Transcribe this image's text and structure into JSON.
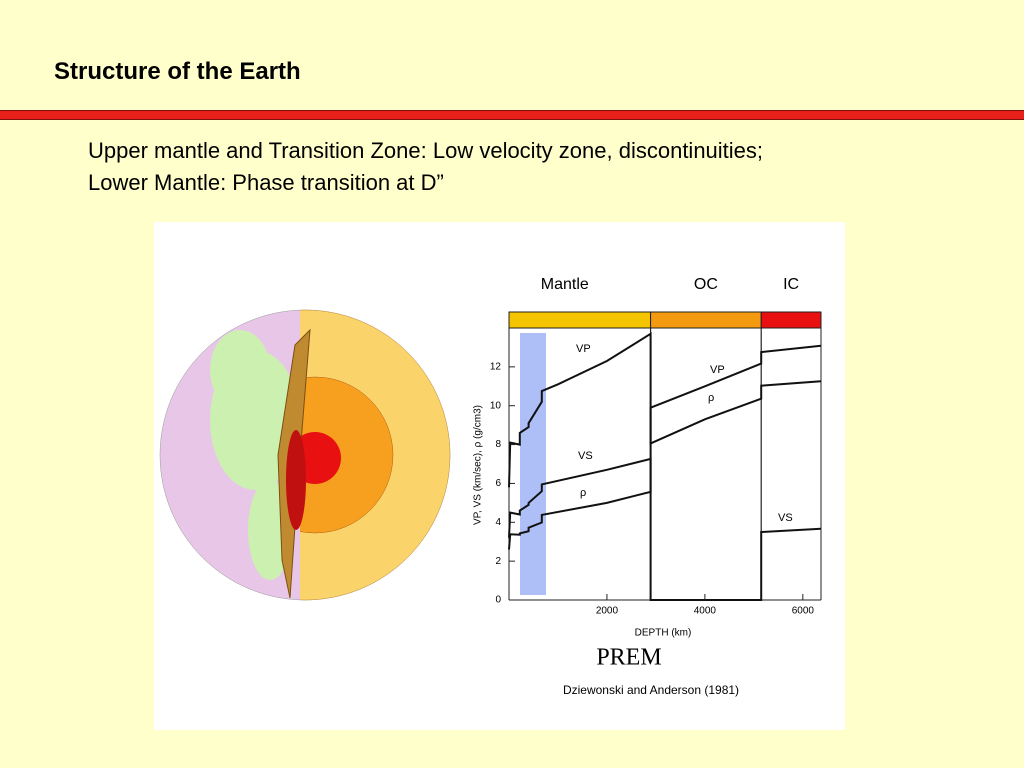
{
  "header": {
    "title": "Structure of the Earth"
  },
  "body": {
    "lines": [
      "Upper mantle and Transition Zone: Low velocity zone, discontinuities;",
      "Lower Mantle: Phase transition at D”"
    ]
  },
  "figure": {
    "bands": [
      {
        "label": "Mantle",
        "start": 0,
        "end": 2891,
        "color": "#f5c400"
      },
      {
        "label": "OC",
        "start": 2891,
        "end": 5150,
        "color": "#f49a10"
      },
      {
        "label": "IC",
        "start": 5150,
        "end": 6371,
        "color": "#e81010"
      }
    ],
    "chart": {
      "type": "line",
      "xlabel": "DEPTH (km)",
      "ylabel": "VP, VS (km/sec), ρ (g/cm3)",
      "xlim": [
        0,
        6371
      ],
      "ylim": [
        0,
        14
      ],
      "xticks": [
        2000,
        4000,
        6000
      ],
      "yticks": [
        0,
        2,
        4,
        6,
        8,
        10,
        12
      ],
      "series": [
        {
          "name": "VP",
          "color": "#111111",
          "x": [
            0,
            24,
            220,
            220,
            400,
            400,
            670,
            670,
            1000,
            2000,
            2891,
            2891,
            4000,
            5150,
            5150,
            6371
          ],
          "values": [
            5.8,
            8.1,
            8.0,
            8.6,
            8.9,
            9.1,
            10.2,
            10.75,
            11.1,
            12.3,
            13.7,
            8.06,
            9.3,
            10.36,
            11.03,
            11.26
          ]
        },
        {
          "name": "VS",
          "color": "#111111",
          "x": [
            0,
            24,
            220,
            220,
            400,
            400,
            670,
            670,
            2000,
            2891,
            2891,
            5150,
            5150,
            6371
          ],
          "values": [
            3.2,
            4.5,
            4.4,
            4.6,
            4.9,
            5.0,
            5.6,
            5.95,
            6.7,
            7.26,
            0,
            0,
            3.5,
            3.67
          ]
        },
        {
          "name": "ρ",
          "color": "#111111",
          "x": [
            0,
            24,
            220,
            220,
            400,
            400,
            670,
            670,
            2000,
            2891,
            2891,
            4000,
            5150,
            5150,
            6371
          ],
          "values": [
            2.6,
            3.38,
            3.36,
            3.43,
            3.54,
            3.72,
            3.99,
            4.38,
            5.0,
            5.57,
            9.9,
            11.0,
            12.17,
            12.76,
            13.09
          ]
        }
      ]
    },
    "caption": "PREM",
    "credit": "Dziewonski and Anderson (1981)"
  }
}
